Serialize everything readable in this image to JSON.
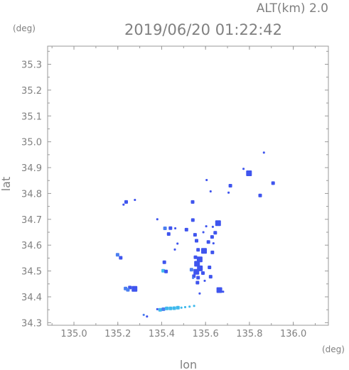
{
  "chart_data": {
    "type": "scatter",
    "title": "2019/06/20 01:22:42",
    "subtitle": "ALT(km) 2.0",
    "xlabel": "lon",
    "ylabel": "lat",
    "xunit": "(deg)",
    "yunit": "(deg)",
    "xlim": [
      134.88,
      136.16
    ],
    "ylim": [
      34.29,
      35.37
    ],
    "xticks": [
      135.0,
      135.2,
      135.4,
      135.6,
      135.8,
      136.0
    ],
    "xtick_labels": [
      "135.0",
      "135.2",
      "135.4",
      "135.6",
      "135.8",
      "136.0"
    ],
    "yticks": [
      34.3,
      34.4,
      34.5,
      34.6,
      34.7,
      34.8,
      34.9,
      35.0,
      35.1,
      35.2,
      35.3
    ],
    "ytick_labels": [
      "34.3",
      "34.4",
      "34.5",
      "34.6",
      "34.7",
      "34.8",
      "34.9",
      "35.0",
      "35.1",
      "35.2",
      "35.3"
    ],
    "grid": false,
    "colors": {
      "strong": "#3f55ee",
      "medium": "#4b7ff0",
      "weak": "#3fb9ec"
    },
    "points": [
      {
        "lon": 135.866,
        "lat": 34.958,
        "c": "strong",
        "s": 1
      },
      {
        "lon": 135.908,
        "lat": 34.84,
        "c": "strong",
        "s": 2
      },
      {
        "lon": 135.798,
        "lat": 34.878,
        "c": "strong",
        "s": 3
      },
      {
        "lon": 135.773,
        "lat": 34.895,
        "c": "strong",
        "s": 1
      },
      {
        "lon": 135.713,
        "lat": 34.83,
        "c": "strong",
        "s": 2
      },
      {
        "lon": 135.705,
        "lat": 34.803,
        "c": "strong",
        "s": 1
      },
      {
        "lon": 135.849,
        "lat": 34.792,
        "c": "strong",
        "s": 2
      },
      {
        "lon": 135.605,
        "lat": 34.852,
        "c": "strong",
        "s": 1
      },
      {
        "lon": 135.623,
        "lat": 34.808,
        "c": "strong",
        "s": 1
      },
      {
        "lon": 135.541,
        "lat": 34.767,
        "c": "strong",
        "s": 2
      },
      {
        "lon": 135.238,
        "lat": 34.767,
        "c": "strong",
        "s": 2
      },
      {
        "lon": 135.226,
        "lat": 34.757,
        "c": "strong",
        "s": 1
      },
      {
        "lon": 135.278,
        "lat": 34.775,
        "c": "strong",
        "s": 1
      },
      {
        "lon": 135.38,
        "lat": 34.7,
        "c": "strong",
        "s": 1
      },
      {
        "lon": 135.415,
        "lat": 34.665,
        "c": "medium",
        "s": 2
      },
      {
        "lon": 135.44,
        "lat": 34.666,
        "c": "strong",
        "s": 2
      },
      {
        "lon": 135.462,
        "lat": 34.665,
        "c": "strong",
        "s": 1
      },
      {
        "lon": 135.432,
        "lat": 34.643,
        "c": "strong",
        "s": 2
      },
      {
        "lon": 135.472,
        "lat": 34.606,
        "c": "strong",
        "s": 1
      },
      {
        "lon": 135.46,
        "lat": 34.583,
        "c": "strong",
        "s": 1
      },
      {
        "lon": 135.542,
        "lat": 34.697,
        "c": "strong",
        "s": 2
      },
      {
        "lon": 135.513,
        "lat": 34.66,
        "c": "strong",
        "s": 2
      },
      {
        "lon": 135.552,
        "lat": 34.64,
        "c": "strong",
        "s": 2
      },
      {
        "lon": 135.603,
        "lat": 34.673,
        "c": "strong",
        "s": 1
      },
      {
        "lon": 135.59,
        "lat": 34.65,
        "c": "strong",
        "s": 1
      },
      {
        "lon": 135.657,
        "lat": 34.685,
        "c": "strong",
        "s": 3
      },
      {
        "lon": 135.633,
        "lat": 34.671,
        "c": "strong",
        "s": 1
      },
      {
        "lon": 135.644,
        "lat": 34.648,
        "c": "strong",
        "s": 2
      },
      {
        "lon": 135.63,
        "lat": 34.632,
        "c": "strong",
        "s": 2
      },
      {
        "lon": 135.613,
        "lat": 34.612,
        "c": "strong",
        "s": 2
      },
      {
        "lon": 135.636,
        "lat": 34.607,
        "c": "strong",
        "s": 1
      },
      {
        "lon": 135.559,
        "lat": 34.617,
        "c": "strong",
        "s": 2
      },
      {
        "lon": 135.593,
        "lat": 34.578,
        "c": "strong",
        "s": 3
      },
      {
        "lon": 135.566,
        "lat": 34.582,
        "c": "strong",
        "s": 2
      },
      {
        "lon": 135.631,
        "lat": 34.572,
        "c": "strong",
        "s": 2
      },
      {
        "lon": 135.554,
        "lat": 34.553,
        "c": "strong",
        "s": 2
      },
      {
        "lon": 135.573,
        "lat": 34.545,
        "c": "strong",
        "s": 3
      },
      {
        "lon": 135.561,
        "lat": 34.528,
        "c": "strong",
        "s": 3
      },
      {
        "lon": 135.574,
        "lat": 34.51,
        "c": "strong",
        "s": 3
      },
      {
        "lon": 135.558,
        "lat": 34.497,
        "c": "strong",
        "s": 3
      },
      {
        "lon": 135.588,
        "lat": 34.492,
        "c": "strong",
        "s": 2
      },
      {
        "lon": 135.547,
        "lat": 34.48,
        "c": "strong",
        "s": 2
      },
      {
        "lon": 135.566,
        "lat": 34.474,
        "c": "strong",
        "s": 2
      },
      {
        "lon": 135.536,
        "lat": 34.505,
        "c": "medium",
        "s": 2
      },
      {
        "lon": 135.543,
        "lat": 34.473,
        "c": "medium",
        "s": 1
      },
      {
        "lon": 135.618,
        "lat": 34.514,
        "c": "strong",
        "s": 2
      },
      {
        "lon": 135.623,
        "lat": 34.478,
        "c": "strong",
        "s": 2
      },
      {
        "lon": 135.563,
        "lat": 34.455,
        "c": "strong",
        "s": 2
      },
      {
        "lon": 135.596,
        "lat": 34.462,
        "c": "strong",
        "s": 1
      },
      {
        "lon": 135.573,
        "lat": 34.413,
        "c": "strong",
        "s": 1
      },
      {
        "lon": 135.663,
        "lat": 34.426,
        "c": "strong",
        "s": 3
      },
      {
        "lon": 135.68,
        "lat": 34.42,
        "c": "strong",
        "s": 1
      },
      {
        "lon": 135.412,
        "lat": 34.534,
        "c": "strong",
        "s": 2
      },
      {
        "lon": 135.407,
        "lat": 34.501,
        "c": "weak",
        "s": 2
      },
      {
        "lon": 135.42,
        "lat": 34.498,
        "c": "strong",
        "s": 2
      },
      {
        "lon": 135.199,
        "lat": 34.563,
        "c": "medium",
        "s": 2
      },
      {
        "lon": 135.213,
        "lat": 34.551,
        "c": "strong",
        "s": 2
      },
      {
        "lon": 135.235,
        "lat": 34.432,
        "c": "medium",
        "s": 2
      },
      {
        "lon": 135.255,
        "lat": 34.436,
        "c": "strong",
        "s": 2
      },
      {
        "lon": 135.276,
        "lat": 34.431,
        "c": "strong",
        "s": 3
      },
      {
        "lon": 135.246,
        "lat": 34.427,
        "c": "medium",
        "s": 2
      },
      {
        "lon": 135.318,
        "lat": 34.33,
        "c": "medium",
        "s": 1
      },
      {
        "lon": 135.333,
        "lat": 34.324,
        "c": "strong",
        "s": 1
      },
      {
        "lon": 135.38,
        "lat": 34.352,
        "c": "strong",
        "s": 1
      },
      {
        "lon": 135.393,
        "lat": 34.35,
        "c": "weak",
        "s": 2
      },
      {
        "lon": 135.408,
        "lat": 34.352,
        "c": "medium",
        "s": 2
      },
      {
        "lon": 135.423,
        "lat": 34.355,
        "c": "weak",
        "s": 2
      },
      {
        "lon": 135.44,
        "lat": 34.355,
        "c": "weak",
        "s": 2
      },
      {
        "lon": 135.457,
        "lat": 34.356,
        "c": "weak",
        "s": 2
      },
      {
        "lon": 135.474,
        "lat": 34.358,
        "c": "weak",
        "s": 2
      },
      {
        "lon": 135.49,
        "lat": 34.358,
        "c": "weak",
        "s": 1
      },
      {
        "lon": 135.507,
        "lat": 34.36,
        "c": "weak",
        "s": 1
      },
      {
        "lon": 135.527,
        "lat": 34.362,
        "c": "weak",
        "s": 1
      },
      {
        "lon": 135.548,
        "lat": 34.365,
        "c": "weak",
        "s": 1
      }
    ]
  }
}
